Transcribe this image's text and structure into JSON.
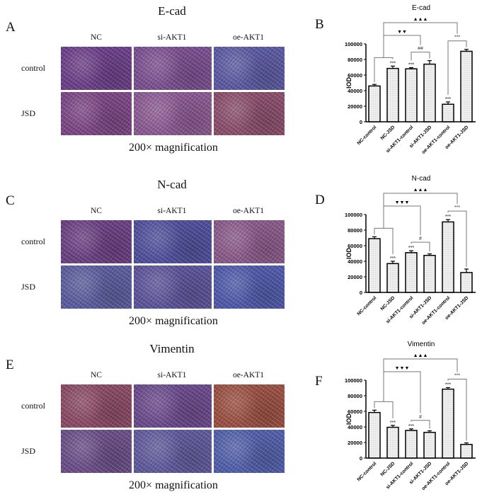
{
  "panels": [
    {
      "letter": "A",
      "title": "E-cad",
      "columns": [
        "NC",
        "si-AKT1",
        "oe-AKT1"
      ],
      "rows": [
        "control",
        "JSD"
      ],
      "caption": "200× magnification",
      "tile_colors": [
        [
          "#6b3f86",
          "#7a4f8e",
          "#5a5aa0"
        ],
        [
          "#7b4683",
          "#8a5a90",
          "#8a4e6a"
        ]
      ]
    },
    {
      "letter": "C",
      "title": "N-cad",
      "columns": [
        "NC",
        "si-AKT1",
        "oe-AKT1"
      ],
      "rows": [
        "control",
        "JSD"
      ],
      "caption": "200× magnification",
      "tile_colors": [
        [
          "#6a4080",
          "#4e4f9a",
          "#8a5a88"
        ],
        [
          "#5a5d9c",
          "#5b5498",
          "#4e5aa8"
        ]
      ]
    },
    {
      "letter": "E",
      "title": "Vimentin",
      "columns": [
        "NC",
        "si-AKT1",
        "oe-AKT1"
      ],
      "rows": [
        "control",
        "JSD"
      ],
      "caption": "200× magnification",
      "tile_colors": [
        [
          "#8a4a62",
          "#6a4a8a",
          "#9a5040"
        ],
        [
          "#6a4e86",
          "#5e5a9a",
          "#5060a8"
        ]
      ]
    }
  ],
  "chart_data": [
    {
      "letter": "B",
      "type": "bar",
      "title": "E-cad",
      "ylabel": "IOD",
      "xlabel": "",
      "ylim": [
        0,
        100000
      ],
      "yticks": [
        "0",
        "20000",
        "40000",
        "60000",
        "80000",
        "100000"
      ],
      "categories": [
        "NC-control",
        "NC-JSD",
        "si-AKT1-control",
        "si-AKT1-JSD",
        "oe-AKT1-control",
        "oe-AKT1-JSD"
      ],
      "values": [
        46000,
        68500,
        68000,
        74000,
        22500,
        90500
      ],
      "errors": [
        2000,
        3000,
        1500,
        4500,
        3000,
        2500
      ],
      "bar_marks": [
        "",
        "***",
        "***",
        "",
        "***",
        ""
      ],
      "pairs": [
        {
          "a": 0,
          "b": 1,
          "label": ""
        },
        {
          "a": 2,
          "b": 3,
          "label": "##"
        },
        {
          "a": 4,
          "b": 5,
          "label": "***"
        }
      ],
      "links": [
        {
          "from": 0,
          "to": 1,
          "label": "▼▼"
        },
        {
          "from": 0,
          "to": 2,
          "label": "▲▲▲"
        }
      ]
    },
    {
      "letter": "D",
      "type": "bar",
      "title": "N-cad",
      "ylabel": "IOD",
      "xlabel": "",
      "ylim": [
        0,
        100000
      ],
      "yticks": [
        "0",
        "20000",
        "40000",
        "60000",
        "80000",
        "100000"
      ],
      "categories": [
        "NC-control",
        "NC-JSD",
        "si-AKT1-control",
        "si-AKT1-JSD",
        "oe-AKT1-control",
        "oe-AKT1-JSD"
      ],
      "values": [
        69000,
        37000,
        51000,
        47500,
        90500,
        25500
      ],
      "errors": [
        2500,
        3000,
        2500,
        2000,
        3000,
        4500
      ],
      "bar_marks": [
        "",
        "***",
        "***",
        "",
        "***",
        ""
      ],
      "pairs": [
        {
          "a": 0,
          "b": 1,
          "label": ""
        },
        {
          "a": 2,
          "b": 3,
          "label": "#"
        },
        {
          "a": 4,
          "b": 5,
          "label": "***"
        }
      ],
      "links": [
        {
          "from": 0,
          "to": 1,
          "label": "▼▼▼"
        },
        {
          "from": 0,
          "to": 2,
          "label": "▲▲▲"
        }
      ]
    },
    {
      "letter": "F",
      "type": "bar",
      "title": "Vimentin",
      "ylabel": "IOD",
      "xlabel": "",
      "ylim": [
        0,
        100000
      ],
      "yticks": [
        "0",
        "20000",
        "40000",
        "60000",
        "80000",
        "100000"
      ],
      "categories": [
        "NC-control",
        "NC-JSD",
        "si-AKT1-control",
        "si-AKT1-JSD",
        "oe-AKT1-control",
        "oe-AKT1-JSD"
      ],
      "values": [
        58500,
        39500,
        35500,
        33000,
        88500,
        17500
      ],
      "errors": [
        3000,
        2500,
        2000,
        2000,
        2000,
        2000
      ],
      "bar_marks": [
        "",
        "***",
        "***",
        "",
        "***",
        ""
      ],
      "pairs": [
        {
          "a": 0,
          "b": 1,
          "label": ""
        },
        {
          "a": 2,
          "b": 3,
          "label": "#"
        },
        {
          "a": 4,
          "b": 5,
          "label": "***"
        }
      ],
      "links": [
        {
          "from": 0,
          "to": 1,
          "label": "▼▼▼"
        },
        {
          "from": 0,
          "to": 2,
          "label": "▲▲▲"
        }
      ]
    }
  ]
}
